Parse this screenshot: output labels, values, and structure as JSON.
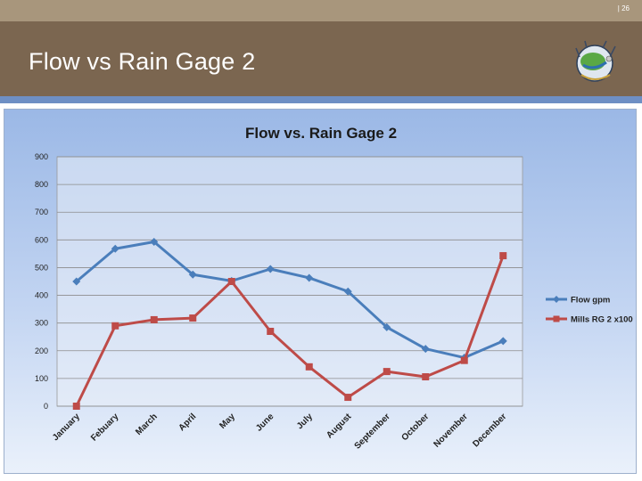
{
  "slide": {
    "page_number": "| 26",
    "title": "Flow vs Rain Gage 2",
    "logo_icon": "globe-emblem-icon"
  },
  "colors": {
    "header_top": "#a8967c",
    "header_main": "#7b6650",
    "accent_stripe": "#6e8fc4",
    "series_flow": "#4a7ebb",
    "series_rain": "#be4b48"
  },
  "chart_data": {
    "type": "line",
    "title": "Flow  vs.  Rain Gage 2",
    "xlabel": "",
    "ylabel": "",
    "ylim": [
      0,
      900
    ],
    "yticks": [
      0,
      100,
      200,
      300,
      400,
      500,
      600,
      700,
      800,
      900
    ],
    "grid": true,
    "legend_position": "right",
    "categories": [
      "January",
      "Febuary",
      "March",
      "April",
      "May",
      "June",
      "July",
      "August",
      "September",
      "October",
      "November",
      "December"
    ],
    "series": [
      {
        "name": "Flow gpm",
        "color": "#4a7ebb",
        "marker": "diamond",
        "values": [
          450,
          568,
          593,
          475,
          452,
          495,
          463,
          414,
          285,
          207,
          175,
          235
        ]
      },
      {
        "name": "Mills RG 2 x100",
        "color": "#be4b48",
        "marker": "square",
        "values": [
          0,
          290,
          312,
          318,
          450,
          270,
          142,
          32,
          125,
          106,
          165,
          543
        ]
      }
    ]
  }
}
